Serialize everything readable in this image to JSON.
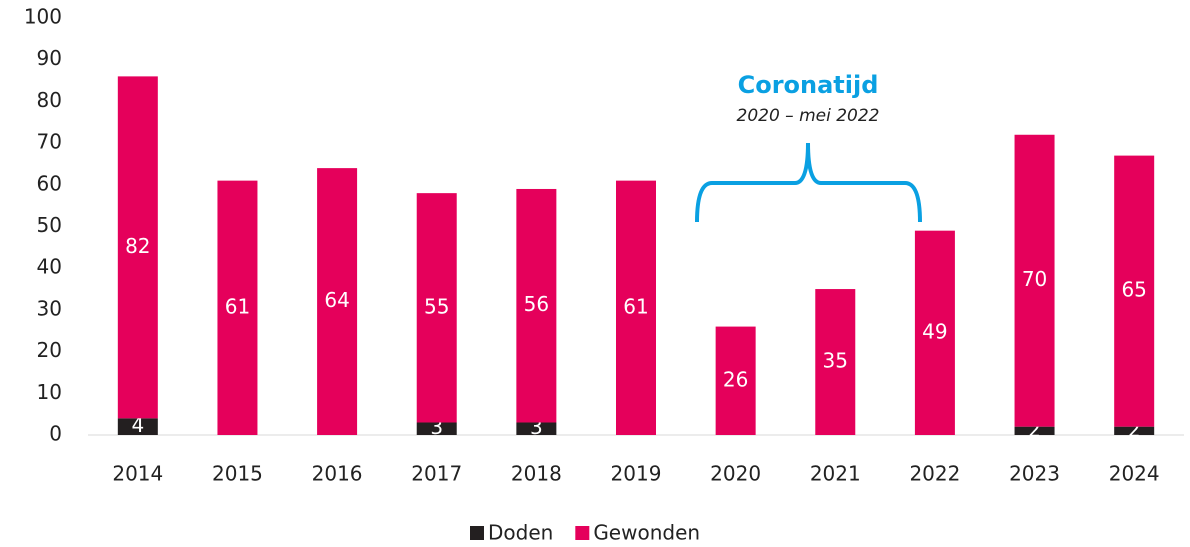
{
  "chart_data": {
    "type": "stacked-bar",
    "categories": [
      "2014",
      "2015",
      "2016",
      "2017",
      "2018",
      "2019",
      "2020",
      "2021",
      "2022",
      "2023",
      "2024"
    ],
    "series": [
      {
        "name": "Doden",
        "color": "#231f20",
        "values": [
          4,
          0,
          0,
          3,
          3,
          0,
          0,
          0,
          0,
          2,
          2
        ]
      },
      {
        "name": "Gewonden",
        "color": "#e5005b",
        "values": [
          82,
          61,
          64,
          55,
          56,
          61,
          26,
          35,
          49,
          70,
          65
        ]
      }
    ],
    "ylim": [
      0,
      100
    ],
    "yticks": [
      0,
      10,
      20,
      30,
      40,
      50,
      60,
      70,
      80,
      90,
      100
    ],
    "grid": false,
    "legend": "bottom",
    "annotations": [
      {
        "text": "Coronatijd",
        "color": "#0aa0e2"
      },
      {
        "text": "2020 – mei 2022"
      }
    ]
  }
}
